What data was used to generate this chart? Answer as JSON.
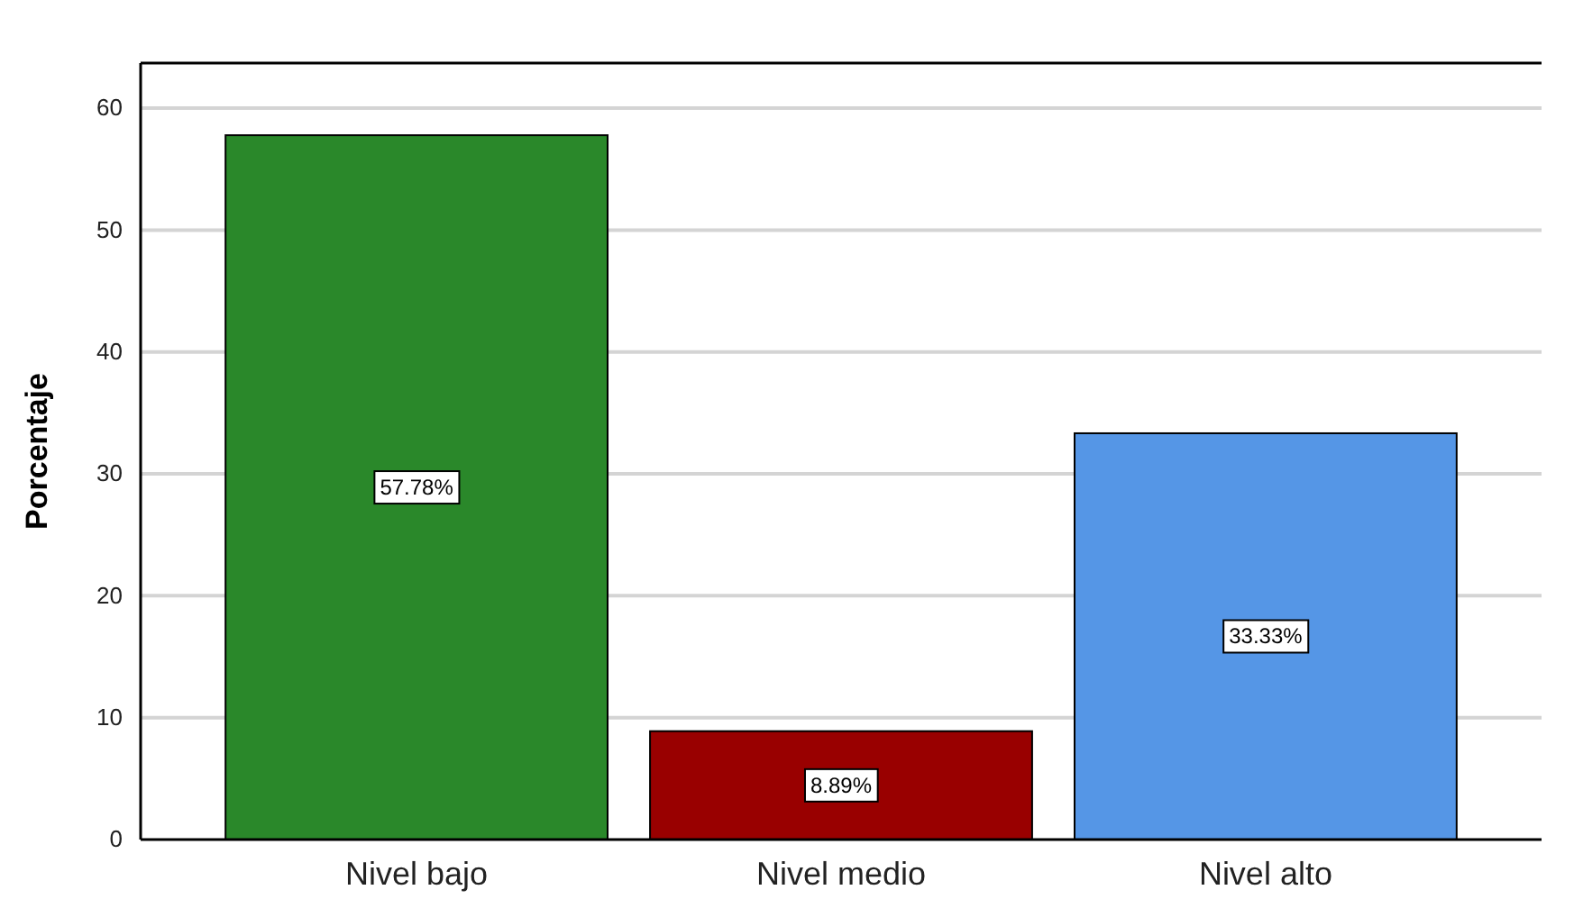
{
  "chart_data": {
    "type": "bar",
    "ylabel": "Porcentaje",
    "categories": [
      "Nivel bajo",
      "Nivel medio",
      "Nivel alto"
    ],
    "values": [
      57.78,
      8.89,
      33.33
    ],
    "value_labels": [
      "57.78%",
      "8.89%",
      "33.33%"
    ],
    "colors": [
      "#2a882a",
      "#990000",
      "#5596e6"
    ],
    "ylim": [
      0,
      63.7
    ],
    "yticks": [
      0,
      10,
      20,
      30,
      40,
      50,
      60
    ],
    "grid": "y"
  }
}
